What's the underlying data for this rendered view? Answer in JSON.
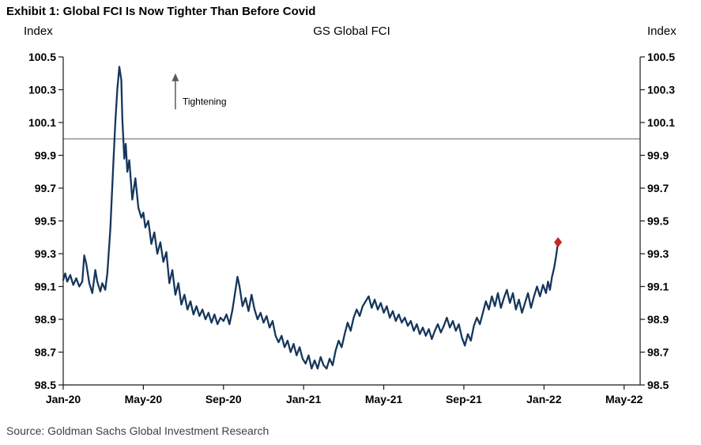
{
  "exhibit_title": "Exhibit 1: Global FCI Is Now Tighter Than Before Covid",
  "source": "Source: Goldman Sachs Global Investment Research",
  "chart": {
    "title": "GS Global FCI",
    "left_axis_title": "Index",
    "right_axis_title": "Index",
    "annotation_label": "Tightening"
  },
  "chart_data": {
    "type": "line",
    "title": "GS Global FCI",
    "ylabel": "Index",
    "x_unit": "months since Jan-2020",
    "xlim": [
      0,
      28.8
    ],
    "ylim": [
      98.5,
      100.5
    ],
    "yticks": [
      100.5,
      100.3,
      100.1,
      99.9,
      99.7,
      99.5,
      99.3,
      99.1,
      98.9,
      98.7,
      98.5
    ],
    "ytick_labels": [
      "100.5",
      "100.3",
      "100.1",
      "99.9",
      "99.7",
      "99.5",
      "99.3",
      "99.1",
      "98.9",
      "98.7",
      "98.5"
    ],
    "xticks": [
      0,
      4,
      8,
      12,
      16,
      20,
      24,
      28
    ],
    "xtick_labels": [
      "Jan-20",
      "May-20",
      "Sep-20",
      "Jan-21",
      "May-21",
      "Sep-21",
      "Jan-22",
      "May-22"
    ],
    "reference_line_y": 100.0,
    "grid": false,
    "legend": "none",
    "colors": {
      "line": "#16365c",
      "marker": "#c62828",
      "reference_line": "#7f7f7f",
      "axis": "#1a1a1a",
      "annotation": "#595959"
    },
    "annotation": {
      "label": "Tightening",
      "x": 5.6,
      "y_from": 100.18,
      "y_to": 100.4
    },
    "end_marker": {
      "shape": "diamond",
      "x": 24.7,
      "y": 99.37
    },
    "series": [
      {
        "name": "GS Global FCI",
        "points": [
          [
            0.0,
            99.14
          ],
          [
            0.1,
            99.18
          ],
          [
            0.2,
            99.13
          ],
          [
            0.35,
            99.17
          ],
          [
            0.5,
            99.11
          ],
          [
            0.65,
            99.15
          ],
          [
            0.8,
            99.1
          ],
          [
            0.95,
            99.13
          ],
          [
            1.05,
            99.29
          ],
          [
            1.15,
            99.24
          ],
          [
            1.3,
            99.12
          ],
          [
            1.45,
            99.06
          ],
          [
            1.6,
            99.2
          ],
          [
            1.7,
            99.13
          ],
          [
            1.85,
            99.07
          ],
          [
            1.95,
            99.12
          ],
          [
            2.1,
            99.08
          ],
          [
            2.2,
            99.18
          ],
          [
            2.35,
            99.45
          ],
          [
            2.5,
            99.85
          ],
          [
            2.6,
            100.1
          ],
          [
            2.7,
            100.3
          ],
          [
            2.8,
            100.44
          ],
          [
            2.9,
            100.36
          ],
          [
            2.95,
            100.12
          ],
          [
            3.05,
            99.88
          ],
          [
            3.12,
            99.97
          ],
          [
            3.2,
            99.8
          ],
          [
            3.3,
            99.87
          ],
          [
            3.45,
            99.63
          ],
          [
            3.6,
            99.76
          ],
          [
            3.75,
            99.58
          ],
          [
            3.9,
            99.52
          ],
          [
            4.0,
            99.55
          ],
          [
            4.1,
            99.46
          ],
          [
            4.25,
            99.5
          ],
          [
            4.4,
            99.36
          ],
          [
            4.55,
            99.43
          ],
          [
            4.7,
            99.3
          ],
          [
            4.85,
            99.37
          ],
          [
            5.0,
            99.25
          ],
          [
            5.15,
            99.31
          ],
          [
            5.3,
            99.12
          ],
          [
            5.45,
            99.2
          ],
          [
            5.6,
            99.05
          ],
          [
            5.75,
            99.12
          ],
          [
            5.9,
            98.99
          ],
          [
            6.05,
            99.05
          ],
          [
            6.2,
            98.96
          ],
          [
            6.35,
            99.01
          ],
          [
            6.5,
            98.93
          ],
          [
            6.65,
            98.98
          ],
          [
            6.8,
            98.92
          ],
          [
            6.95,
            98.96
          ],
          [
            7.1,
            98.9
          ],
          [
            7.25,
            98.94
          ],
          [
            7.4,
            98.88
          ],
          [
            7.55,
            98.93
          ],
          [
            7.7,
            98.87
          ],
          [
            7.85,
            98.91
          ],
          [
            8.0,
            98.89
          ],
          [
            8.15,
            98.93
          ],
          [
            8.3,
            98.87
          ],
          [
            8.45,
            98.96
          ],
          [
            8.6,
            99.08
          ],
          [
            8.7,
            99.16
          ],
          [
            8.8,
            99.1
          ],
          [
            8.95,
            98.98
          ],
          [
            9.1,
            99.03
          ],
          [
            9.25,
            98.95
          ],
          [
            9.4,
            99.05
          ],
          [
            9.55,
            98.96
          ],
          [
            9.7,
            98.9
          ],
          [
            9.85,
            98.94
          ],
          [
            10.0,
            98.88
          ],
          [
            10.15,
            98.92
          ],
          [
            10.3,
            98.85
          ],
          [
            10.45,
            98.89
          ],
          [
            10.6,
            98.8
          ],
          [
            10.75,
            98.76
          ],
          [
            10.9,
            98.8
          ],
          [
            11.05,
            98.73
          ],
          [
            11.2,
            98.77
          ],
          [
            11.35,
            98.7
          ],
          [
            11.5,
            98.75
          ],
          [
            11.65,
            98.68
          ],
          [
            11.8,
            98.73
          ],
          [
            11.95,
            98.66
          ],
          [
            12.1,
            98.63
          ],
          [
            12.25,
            98.68
          ],
          [
            12.4,
            98.6
          ],
          [
            12.55,
            98.65
          ],
          [
            12.7,
            98.6
          ],
          [
            12.85,
            98.67
          ],
          [
            13.0,
            98.62
          ],
          [
            13.15,
            98.6
          ],
          [
            13.3,
            98.66
          ],
          [
            13.45,
            98.62
          ],
          [
            13.6,
            98.71
          ],
          [
            13.75,
            98.77
          ],
          [
            13.9,
            98.73
          ],
          [
            14.05,
            98.81
          ],
          [
            14.2,
            98.88
          ],
          [
            14.35,
            98.83
          ],
          [
            14.5,
            98.91
          ],
          [
            14.65,
            98.96
          ],
          [
            14.8,
            98.92
          ],
          [
            14.95,
            98.98
          ],
          [
            15.1,
            99.01
          ],
          [
            15.25,
            99.04
          ],
          [
            15.4,
            98.97
          ],
          [
            15.55,
            99.02
          ],
          [
            15.7,
            98.96
          ],
          [
            15.85,
            99.0
          ],
          [
            16.0,
            98.94
          ],
          [
            16.15,
            98.98
          ],
          [
            16.3,
            98.91
          ],
          [
            16.45,
            98.95
          ],
          [
            16.6,
            98.89
          ],
          [
            16.75,
            98.93
          ],
          [
            16.9,
            98.88
          ],
          [
            17.05,
            98.91
          ],
          [
            17.2,
            98.86
          ],
          [
            17.35,
            98.89
          ],
          [
            17.5,
            98.83
          ],
          [
            17.65,
            98.87
          ],
          [
            17.8,
            98.81
          ],
          [
            17.95,
            98.85
          ],
          [
            18.1,
            98.8
          ],
          [
            18.25,
            98.84
          ],
          [
            18.4,
            98.78
          ],
          [
            18.55,
            98.83
          ],
          [
            18.7,
            98.87
          ],
          [
            18.85,
            98.82
          ],
          [
            19.0,
            98.86
          ],
          [
            19.15,
            98.91
          ],
          [
            19.3,
            98.85
          ],
          [
            19.45,
            98.89
          ],
          [
            19.6,
            98.83
          ],
          [
            19.75,
            98.87
          ],
          [
            19.9,
            98.79
          ],
          [
            20.05,
            98.74
          ],
          [
            20.2,
            98.81
          ],
          [
            20.35,
            98.77
          ],
          [
            20.5,
            98.86
          ],
          [
            20.65,
            98.91
          ],
          [
            20.8,
            98.87
          ],
          [
            20.95,
            98.94
          ],
          [
            21.1,
            99.01
          ],
          [
            21.25,
            98.96
          ],
          [
            21.4,
            99.04
          ],
          [
            21.55,
            98.98
          ],
          [
            21.7,
            99.06
          ],
          [
            21.85,
            98.97
          ],
          [
            22.0,
            99.03
          ],
          [
            22.15,
            99.08
          ],
          [
            22.3,
            99.0
          ],
          [
            22.45,
            99.06
          ],
          [
            22.6,
            98.96
          ],
          [
            22.75,
            99.02
          ],
          [
            22.9,
            98.94
          ],
          [
            23.05,
            99.0
          ],
          [
            23.2,
            99.06
          ],
          [
            23.35,
            98.97
          ],
          [
            23.5,
            99.04
          ],
          [
            23.65,
            99.1
          ],
          [
            23.8,
            99.04
          ],
          [
            23.95,
            99.11
          ],
          [
            24.1,
            99.06
          ],
          [
            24.2,
            99.13
          ],
          [
            24.3,
            99.08
          ],
          [
            24.4,
            99.16
          ],
          [
            24.5,
            99.21
          ],
          [
            24.6,
            99.28
          ],
          [
            24.7,
            99.37
          ]
        ]
      }
    ]
  }
}
